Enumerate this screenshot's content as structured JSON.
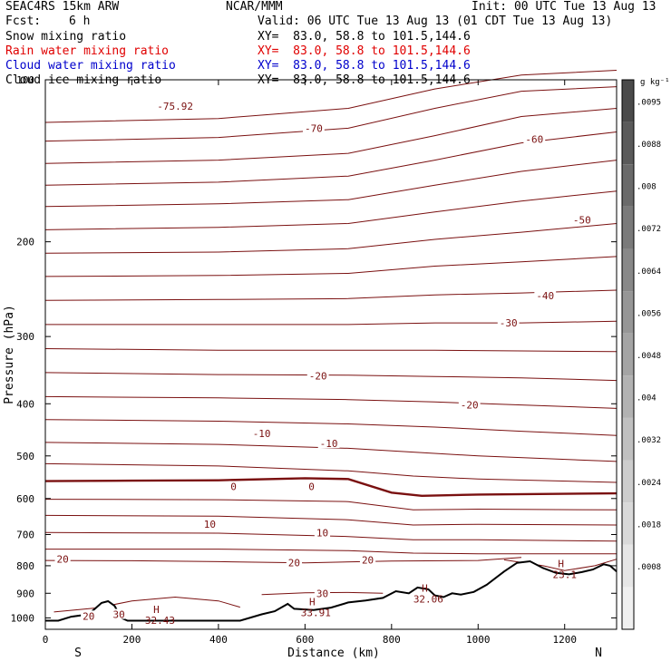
{
  "header": {
    "model": "SEAC4RS 15km ARW",
    "org": "NCAR/MMM",
    "init": "Init: 00 UTC Tue 13 Aug 13",
    "fcst_label": "Fcst:",
    "fcst_value": "6 h",
    "valid": "Valid: 06 UTC Tue 13 Aug 13 (01 CDT Tue 13 Aug 13)",
    "fields": [
      {
        "name": "Snow mixing ratio",
        "xy": "XY=  83.0, 58.8 to 101.5,144.6",
        "color": "#000000"
      },
      {
        "name": "Rain water mixing ratio",
        "xy": "XY=  83.0, 58.8 to 101.5,144.6",
        "color": "#e00000"
      },
      {
        "name": "Cloud water mixing ratio",
        "xy": "XY=  83.0, 58.8 to 101.5,144.6",
        "color": "#0000cc"
      },
      {
        "name": "Cloud ice mixing ratio",
        "xy": "XY=  83.0, 58.8 to 101.5,144.6",
        "color": "#000000"
      }
    ]
  },
  "chart_data": {
    "type": "contour-cross-section",
    "xlabel": "Distance (km)",
    "ylabel": "Pressure (hPa)",
    "xlim": [
      0,
      1320
    ],
    "ylim": [
      1050,
      100
    ],
    "y_log": true,
    "x_ticks": [
      0,
      200,
      400,
      600,
      800,
      1000,
      1200
    ],
    "y_ticks": [
      100,
      200,
      300,
      400,
      500,
      600,
      700,
      800,
      900,
      1000
    ],
    "y_tick_labels": [
      "100",
      "200",
      "300",
      "400",
      "500",
      "600",
      "700",
      "800",
      "900",
      "1000"
    ],
    "endpoint_labels": {
      "left": "S",
      "right": "N"
    },
    "contour_color": "#7a1010",
    "contours": [
      {
        "pts": [
          [
            0,
            120
          ],
          [
            400,
            118
          ],
          [
            700,
            113
          ],
          [
            900,
            104
          ],
          [
            1100,
            98
          ],
          [
            1320,
            96
          ]
        ]
      },
      {
        "pts": [
          [
            0,
            130
          ],
          [
            400,
            128
          ],
          [
            700,
            123
          ],
          [
            900,
            113
          ],
          [
            1100,
            105
          ],
          [
            1320,
            103
          ]
        ]
      },
      {
        "pts": [
          [
            0,
            143
          ],
          [
            400,
            141
          ],
          [
            700,
            137
          ],
          [
            900,
            127
          ],
          [
            1100,
            117
          ],
          [
            1320,
            113
          ]
        ]
      },
      {
        "pts": [
          [
            0,
            157
          ],
          [
            400,
            155
          ],
          [
            700,
            151
          ],
          [
            900,
            141
          ],
          [
            1100,
            131
          ],
          [
            1320,
            125
          ]
        ]
      },
      {
        "pts": [
          [
            0,
            172
          ],
          [
            400,
            170
          ],
          [
            700,
            167
          ],
          [
            900,
            157
          ],
          [
            1100,
            148
          ],
          [
            1320,
            141
          ]
        ]
      },
      {
        "pts": [
          [
            0,
            190
          ],
          [
            400,
            188
          ],
          [
            700,
            185
          ],
          [
            900,
            176
          ],
          [
            1100,
            168
          ],
          [
            1320,
            161
          ]
        ]
      },
      {
        "pts": [
          [
            0,
            210
          ],
          [
            400,
            209
          ],
          [
            700,
            206
          ],
          [
            900,
            198
          ],
          [
            1100,
            192
          ],
          [
            1320,
            185
          ]
        ]
      },
      {
        "pts": [
          [
            0,
            232
          ],
          [
            400,
            231
          ],
          [
            700,
            229
          ],
          [
            900,
            222
          ],
          [
            1100,
            218
          ],
          [
            1320,
            213
          ]
        ]
      },
      {
        "pts": [
          [
            0,
            257
          ],
          [
            400,
            256
          ],
          [
            700,
            255
          ],
          [
            900,
            251
          ],
          [
            1100,
            249
          ],
          [
            1320,
            246
          ]
        ]
      },
      {
        "pts": [
          [
            0,
            285
          ],
          [
            400,
            285
          ],
          [
            700,
            285
          ],
          [
            900,
            283
          ],
          [
            1100,
            283
          ],
          [
            1320,
            281
          ]
        ]
      },
      {
        "pts": [
          [
            0,
            316
          ],
          [
            400,
            318
          ],
          [
            700,
            318
          ],
          [
            900,
            318
          ],
          [
            1100,
            319
          ],
          [
            1320,
            320
          ]
        ]
      },
      {
        "pts": [
          [
            0,
            350
          ],
          [
            400,
            353
          ],
          [
            700,
            354
          ],
          [
            900,
            356
          ],
          [
            1100,
            358
          ],
          [
            1320,
            362
          ]
        ]
      },
      {
        "pts": [
          [
            0,
            388
          ],
          [
            400,
            390
          ],
          [
            700,
            393
          ],
          [
            900,
            397
          ],
          [
            1100,
            402
          ],
          [
            1320,
            408
          ]
        ]
      },
      {
        "pts": [
          [
            0,
            428
          ],
          [
            400,
            431
          ],
          [
            700,
            436
          ],
          [
            900,
            442
          ],
          [
            1100,
            450
          ],
          [
            1320,
            458
          ]
        ]
      },
      {
        "pts": [
          [
            0,
            472
          ],
          [
            400,
            476
          ],
          [
            700,
            484
          ],
          [
            850,
            492
          ],
          [
            1000,
            500
          ],
          [
            1320,
            512
          ]
        ]
      },
      {
        "pts": [
          [
            0,
            517
          ],
          [
            400,
            522
          ],
          [
            700,
            533
          ],
          [
            850,
            545
          ],
          [
            1000,
            552
          ],
          [
            1320,
            560
          ]
        ],
        "label": "0"
      },
      {
        "pts": [
          [
            0,
            557
          ],
          [
            200,
            556
          ],
          [
            400,
            555
          ],
          [
            600,
            550
          ],
          [
            700,
            552
          ],
          [
            800,
            585
          ],
          [
            870,
            593
          ],
          [
            1000,
            590
          ],
          [
            1320,
            587
          ]
        ],
        "bold": true
      },
      {
        "pts": [
          [
            0,
            602
          ],
          [
            400,
            603
          ],
          [
            700,
            608
          ],
          [
            850,
            630
          ],
          [
            1000,
            628
          ],
          [
            1320,
            630
          ]
        ]
      },
      {
        "pts": [
          [
            0,
            645
          ],
          [
            400,
            647
          ],
          [
            700,
            657
          ],
          [
            850,
            672
          ],
          [
            1000,
            670
          ],
          [
            1320,
            672
          ]
        ]
      },
      {
        "pts": [
          [
            0,
            694
          ],
          [
            400,
            696
          ],
          [
            700,
            706
          ],
          [
            850,
            716
          ],
          [
            1000,
            716
          ],
          [
            1320,
            720
          ]
        ]
      },
      {
        "pts": [
          [
            0,
            745
          ],
          [
            400,
            745
          ],
          [
            700,
            750
          ],
          [
            850,
            758
          ],
          [
            1000,
            760
          ],
          [
            1320,
            760
          ]
        ]
      },
      {
        "pts": [
          [
            0,
            782
          ],
          [
            200,
            783
          ],
          [
            400,
            786
          ],
          [
            600,
            790
          ],
          [
            800,
            784
          ],
          [
            1000,
            782
          ],
          [
            1100,
            772
          ]
        ]
      },
      {
        "pts": [
          [
            20,
            975
          ],
          [
            120,
            958
          ],
          [
            200,
            930
          ],
          [
            300,
            915
          ],
          [
            400,
            930
          ],
          [
            450,
            955
          ]
        ]
      },
      {
        "pts": [
          [
            500,
            905
          ],
          [
            600,
            898
          ],
          [
            700,
            897
          ],
          [
            780,
            900
          ]
        ]
      },
      {
        "pts": [
          [
            1060,
            780
          ],
          [
            1150,
            800
          ],
          [
            1200,
            817
          ],
          [
            1270,
            800
          ],
          [
            1320,
            778
          ]
        ]
      }
    ],
    "contour_labels": [
      {
        "x": 300,
        "p": 112,
        "text": "-75.92"
      },
      {
        "x": 620,
        "p": 123,
        "text": "-70"
      },
      {
        "x": 1130,
        "p": 129,
        "text": "-60"
      },
      {
        "x": 1240,
        "p": 182,
        "text": "-50"
      },
      {
        "x": 1155,
        "p": 252,
        "text": "-40"
      },
      {
        "x": 1070,
        "p": 283,
        "text": "-30"
      },
      {
        "x": 630,
        "p": 355,
        "text": "-20"
      },
      {
        "x": 980,
        "p": 402,
        "text": "-20"
      },
      {
        "x": 500,
        "p": 454,
        "text": "-10"
      },
      {
        "x": 655,
        "p": 474,
        "text": "-10"
      },
      {
        "x": 435,
        "p": 570,
        "text": "0"
      },
      {
        "x": 615,
        "p": 570,
        "text": "0"
      },
      {
        "x": 380,
        "p": 670,
        "text": "10"
      },
      {
        "x": 640,
        "p": 694,
        "text": "10"
      },
      {
        "x": 40,
        "p": 778,
        "text": "20"
      },
      {
        "x": 575,
        "p": 790,
        "text": "20"
      },
      {
        "x": 745,
        "p": 780,
        "text": "20"
      },
      {
        "x": 640,
        "p": 900,
        "text": "30"
      },
      {
        "x": 170,
        "p": 985,
        "text": "30"
      },
      {
        "x": 100,
        "p": 992,
        "text": "20"
      }
    ],
    "highs": [
      {
        "x": 265,
        "p": 995,
        "label": "32.43"
      },
      {
        "x": 625,
        "p": 962,
        "label": "33.91"
      },
      {
        "x": 885,
        "p": 908,
        "label": "32.06"
      },
      {
        "x": 1200,
        "p": 818,
        "label": "23.1"
      }
    ],
    "terrain": [
      [
        0,
        1012
      ],
      [
        30,
        1012
      ],
      [
        60,
        995
      ],
      [
        100,
        985
      ],
      [
        130,
        938
      ],
      [
        145,
        931
      ],
      [
        160,
        950
      ],
      [
        175,
        1000
      ],
      [
        190,
        1012
      ],
      [
        260,
        1012
      ],
      [
        450,
        1012
      ],
      [
        500,
        985
      ],
      [
        530,
        972
      ],
      [
        560,
        942
      ],
      [
        575,
        962
      ],
      [
        620,
        967
      ],
      [
        660,
        957
      ],
      [
        700,
        936
      ],
      [
        740,
        928
      ],
      [
        780,
        918
      ],
      [
        810,
        892
      ],
      [
        840,
        900
      ],
      [
        860,
        878
      ],
      [
        885,
        885
      ],
      [
        900,
        908
      ],
      [
        920,
        915
      ],
      [
        940,
        900
      ],
      [
        960,
        905
      ],
      [
        990,
        895
      ],
      [
        1020,
        868
      ],
      [
        1060,
        820
      ],
      [
        1090,
        790
      ],
      [
        1120,
        785
      ],
      [
        1150,
        808
      ],
      [
        1180,
        825
      ],
      [
        1210,
        830
      ],
      [
        1240,
        822
      ],
      [
        1265,
        813
      ],
      [
        1290,
        795
      ],
      [
        1305,
        800
      ],
      [
        1320,
        820
      ]
    ],
    "colorbar": {
      "unit": "g kg⁻¹",
      "labels": [
        ".0095",
        ".0088",
        ".008",
        ".0072",
        ".0064",
        ".0056",
        ".0048",
        ".004",
        ".0032",
        ".0024",
        ".0018",
        ".0008"
      ],
      "colors": [
        "#4a4a4a",
        "#5a5a5a",
        "#6a6a6a",
        "#7a7a7a",
        "#888888",
        "#969696",
        "#a4a4a4",
        "#b2b2b2",
        "#c0c0c0",
        "#cdcdcd",
        "#d9d9d9",
        "#e6e6e6",
        "#f0f0f0"
      ]
    }
  }
}
